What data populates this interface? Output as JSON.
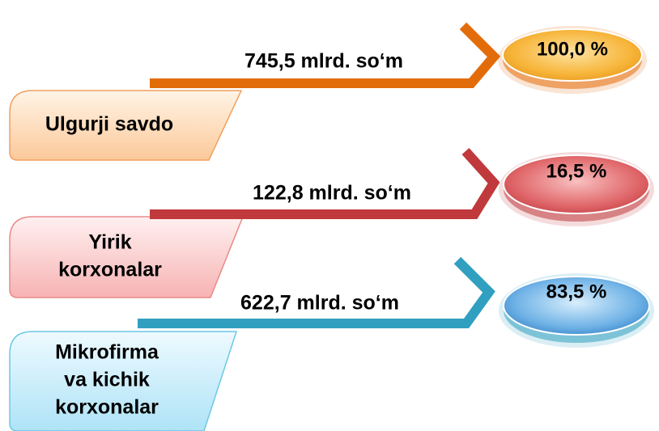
{
  "items": [
    {
      "label_lines": [
        "Ulgurji savdo"
      ],
      "amount": "745,5 mlrd. so‘m",
      "percent": "100,0  %"
    },
    {
      "label_lines": [
        "Yirik",
        "korxonalar"
      ],
      "amount": "122,8 mlrd. so‘m",
      "percent": "16,5 %"
    },
    {
      "label_lines": [
        "Mikrofirma",
        "va kichik",
        "korxonalar"
      ],
      "amount": "622,7 mlrd. so‘m",
      "percent": "83,5 %"
    }
  ]
}
